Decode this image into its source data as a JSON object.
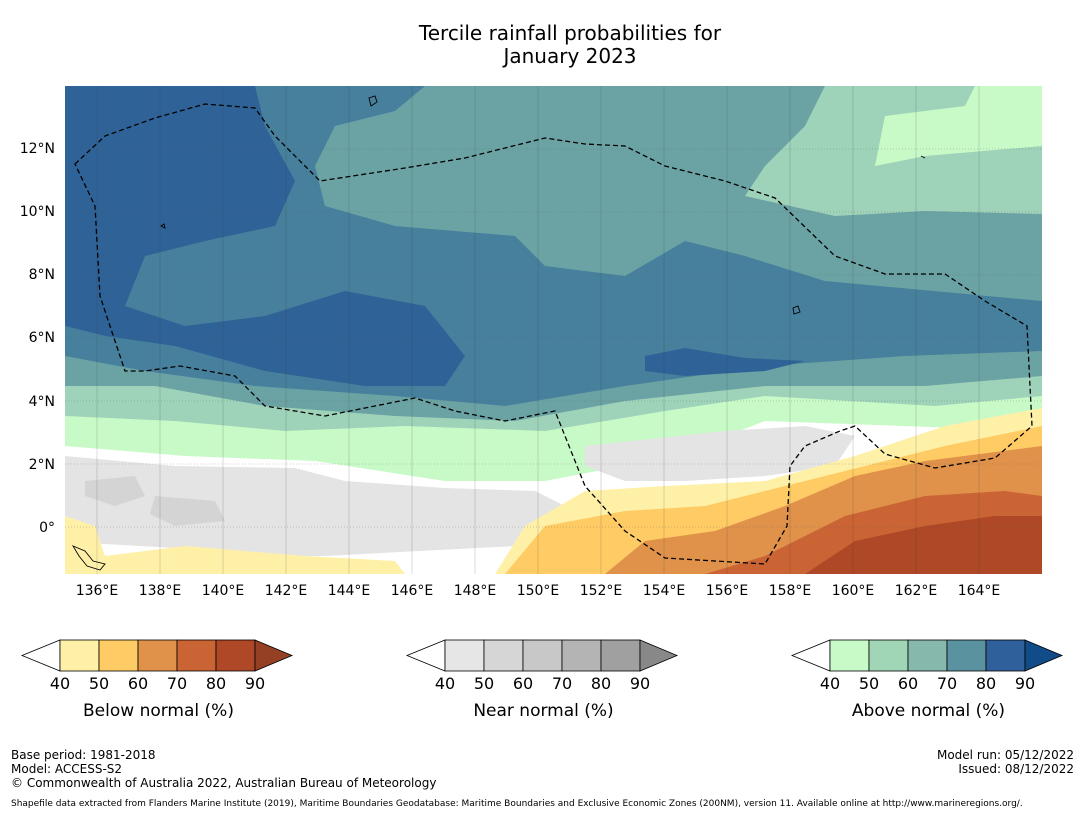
{
  "title_line1": "Tercile rainfall probabilities for",
  "title_line2": "January 2023",
  "lat_labels": [
    "12°N",
    "10°N",
    "8°N",
    "6°N",
    "4°N",
    "2°N",
    "0°"
  ],
  "lon_labels": [
    "136°E",
    "138°E",
    "140°E",
    "142°E",
    "144°E",
    "146°E",
    "148°E",
    "150°E",
    "152°E",
    "154°E",
    "156°E",
    "158°E",
    "160°E",
    "162°E",
    "164°E"
  ],
  "legends": [
    {
      "id": "below",
      "label": "Below normal (%)",
      "ticks": [
        "40",
        "50",
        "60",
        "70",
        "80",
        "90"
      ],
      "colors": [
        "#fff0a8",
        "#fecb64",
        "#e0924a",
        "#cb6434",
        "#ae4826",
        "#954024"
      ]
    },
    {
      "id": "near",
      "label": "Near normal (%)",
      "ticks": [
        "40",
        "50",
        "60",
        "70",
        "80",
        "90"
      ],
      "colors": [
        "#e6e6e6",
        "#d6d6d6",
        "#c8c8c8",
        "#b4b4b4",
        "#a0a0a0",
        "#888888"
      ]
    },
    {
      "id": "above",
      "label": "Above normal (%)",
      "ticks": [
        "40",
        "50",
        "60",
        "70",
        "80",
        "90"
      ],
      "colors": [
        "#c8fac8",
        "#a0d6b6",
        "#86b8ac",
        "#5a92a0",
        "#30609c",
        "#124c88"
      ]
    }
  ],
  "map_colors": {
    "white": "#ffffff",
    "light_green": "#c8fac8",
    "mint": "#9fd3b9",
    "teal_light": "#6ba3a4",
    "teal": "#47809c",
    "blue": "#2f6398",
    "grey_light": "#e4e4e4",
    "grey": "#d4d4d4",
    "yellow": "#fff0a8",
    "orange_light": "#fecb64",
    "orange": "#e0924a",
    "orange_dark": "#cb6434",
    "brown": "#ae4826"
  },
  "footer": {
    "base_period": "Base period: 1981-2018",
    "model": "Model: ACCESS-S2",
    "copyright": "© Commonwealth of Australia 2022, Australian Bureau of Meteorology",
    "model_run": "Model run: 05/12/2022",
    "issued": "Issued: 08/12/2022",
    "source": "Shapefile data extracted from Flanders Marine Institute (2019), Maritime Boundaries Geodatabase: Maritime Boundaries and Exclusive Economic Zones (200NM), version 11. Available online at http://www.marineregions.org/."
  }
}
